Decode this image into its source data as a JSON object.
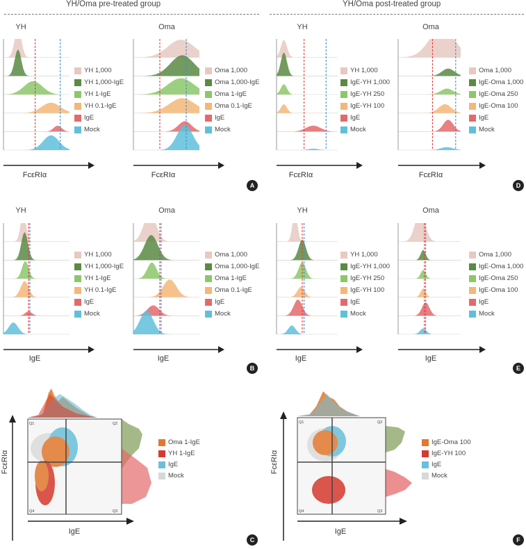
{
  "colors": {
    "lightpink": "#e8c9c2",
    "darkgreen": "#5a8a43",
    "green": "#8cc76a",
    "orange": "#f5b778",
    "red": "#e4696b",
    "blue": "#5fc0dd",
    "oma": "#e2782e",
    "yh": "#d63a2f",
    "ige": "#6bbfda",
    "mock": "#d8d8d8",
    "line_red": "#e53b3b",
    "line_blue": "#3f8fd6"
  },
  "groups": {
    "pre": "YH/Oma pre-treated group",
    "post": "YH/Oma post-treated group"
  },
  "axis": {
    "fceri": "FcεRIα",
    "ige": "IgE"
  },
  "titles": {
    "yh": "YH",
    "oma": "Oma"
  },
  "legends": {
    "yh_pre": [
      "YH 1,000",
      "YH 1,000-IgE",
      "YH 1-IgE",
      "YH 0.1-IgE",
      "IgE",
      "Mock"
    ],
    "oma_pre": [
      "Oma 1,000",
      "Oma 1,000-IgE",
      "Oma 1-IgE",
      "Oma 0.1-IgE",
      "IgE",
      "Mock"
    ],
    "yh_post": [
      "YH 1,000",
      "IgE-YH 1,000",
      "IgE-YH 250",
      "IgE-YH 100",
      "IgE",
      "Mock"
    ],
    "oma_post": [
      "Oma 1,000",
      "IgE-Oma 1,000",
      "IgE-Oma 250",
      "IgE-Oma 100",
      "IgE",
      "Mock"
    ],
    "dot_c": [
      "Oma 1-IgE",
      "YH 1-IgE",
      "IgE",
      "Mock"
    ],
    "dot_f": [
      "IgE-Oma 100",
      "IgE-YH 100",
      "IgE",
      "Mock"
    ]
  },
  "panels": {
    "a": "A",
    "b": "B",
    "c": "C",
    "d": "D",
    "e": "E",
    "f": "F"
  },
  "quadrants": {
    "q1": "Q1",
    "q2": "Q2",
    "q3": "Q3",
    "q4": "Q4"
  }
}
